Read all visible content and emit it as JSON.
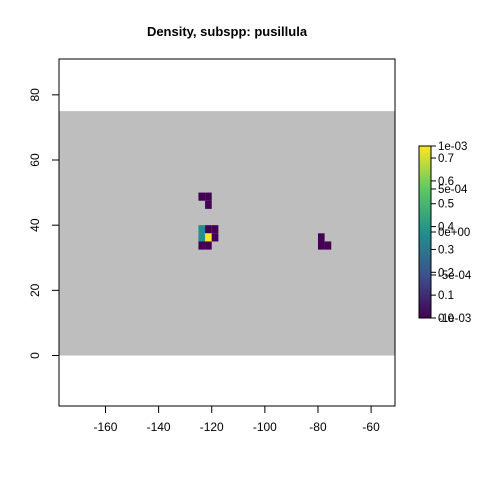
{
  "chart_data": {
    "type": "heatmap",
    "title": "Density, subspp: pusillula",
    "xlabel": "",
    "ylabel": "",
    "xlim": [
      -177.5,
      -51
    ],
    "ylim": [
      -15.5,
      91
    ],
    "x_ticks": [
      -160,
      -140,
      -120,
      -100,
      -80,
      -60
    ],
    "y_ticks": [
      0,
      20,
      40,
      60,
      80
    ],
    "background_band": {
      "y_from": 0,
      "y_to": 75,
      "color": "#bebebe"
    },
    "cell_size_deg": 2.5,
    "cells": [
      {
        "x": -123.75,
        "y": 48.75,
        "color": "#440154"
      },
      {
        "x": -121.25,
        "y": 48.75,
        "color": "#440154"
      },
      {
        "x": -121.25,
        "y": 46.25,
        "color": "#440154"
      },
      {
        "x": -123.75,
        "y": 38.75,
        "color": "#21908c"
      },
      {
        "x": -121.25,
        "y": 38.75,
        "color": "#440154"
      },
      {
        "x": -123.75,
        "y": 36.25,
        "color": "#21908c"
      },
      {
        "x": -121.25,
        "y": 36.25,
        "color": "#fde725"
      },
      {
        "x": -118.75,
        "y": 36.25,
        "color": "#440154"
      },
      {
        "x": -118.75,
        "y": 38.75,
        "color": "#440154"
      },
      {
        "x": -123.75,
        "y": 33.75,
        "color": "#440154"
      },
      {
        "x": -121.25,
        "y": 33.75,
        "color": "#440154"
      },
      {
        "x": -78.75,
        "y": 36.25,
        "color": "#440154"
      },
      {
        "x": -78.75,
        "y": 33.75,
        "color": "#440154"
      },
      {
        "x": -76.25,
        "y": 33.75,
        "color": "#440154"
      }
    ],
    "colorbar": {
      "colors": [
        "#440154",
        "#3b528b",
        "#21908c",
        "#5dc863",
        "#fde725"
      ],
      "scale_a": {
        "min": 0.0,
        "max": 0.7,
        "ticks": [
          0.0,
          0.1,
          0.2,
          0.3,
          0.4,
          0.5,
          0.6,
          0.7
        ]
      },
      "scale_b": {
        "min": -0.001,
        "max": 0.001,
        "ticks": [
          {
            "value": -0.001,
            "label": "-1e-03"
          },
          {
            "value": -0.0005,
            "label": "-5e-04"
          },
          {
            "value": 0,
            "label": "0e+00"
          },
          {
            "value": 0.0005,
            "label": "5e-04"
          },
          {
            "value": 0.001,
            "label": "1e-03"
          }
        ]
      }
    }
  }
}
